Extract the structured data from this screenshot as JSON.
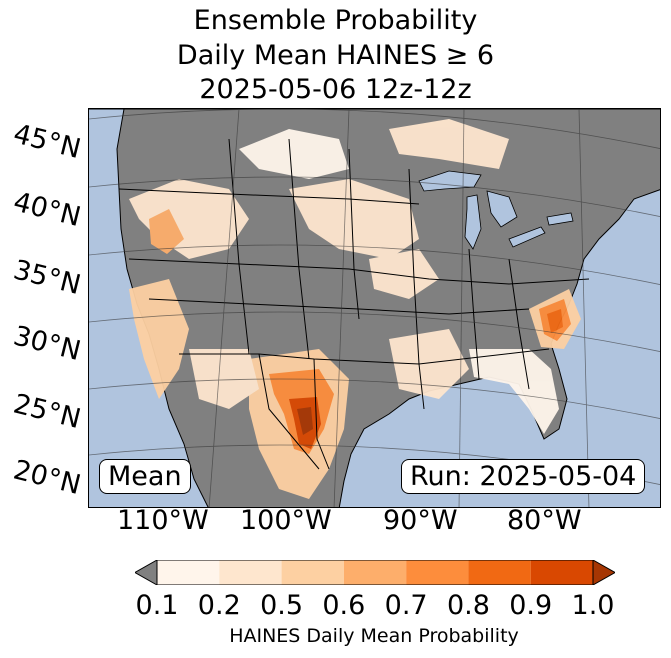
{
  "title": {
    "line1": "Ensemble Probability",
    "line2": "Daily Mean HAINES ≥ 6",
    "line3": "2025-05-06 12z-12z"
  },
  "lat_labels": [
    "45°N",
    "40°N",
    "35°N",
    "30°N",
    "25°N",
    "20°N"
  ],
  "lon_labels": [
    "110°W",
    "100°W",
    "90°W",
    "80°W"
  ],
  "boxes": {
    "mean": "Mean",
    "run": "Run: 2025-05-04"
  },
  "colorbar": {
    "ticks": [
      "0.1",
      "0.2",
      "0.5",
      "0.6",
      "0.7",
      "0.8",
      "0.9",
      "1.0"
    ],
    "colors": [
      "#fff5eb",
      "#fee6ce",
      "#fdd0a2",
      "#fdae6b",
      "#fd8d3c",
      "#f16913",
      "#d94801"
    ],
    "under_color": "#808080",
    "over_color": "#a63603",
    "label": "HAINES Daily Mean Probability"
  },
  "map_colors": {
    "ocean": "#b0c4de",
    "land_low": "#808080",
    "lakes": "#b0c4de"
  },
  "probability_areas": [
    {
      "region": "Carolinas / Virginia",
      "max_prob_range": "0.8-0.9"
    },
    {
      "region": "West Texas / Northern Mexico",
      "max_prob_range": "0.9-1.0"
    },
    {
      "region": "Florida",
      "max_prob_range": "0.2-0.5"
    },
    {
      "region": "Northern Plains / Upper Midwest",
      "max_prob_range": "0.1-0.5"
    }
  ]
}
